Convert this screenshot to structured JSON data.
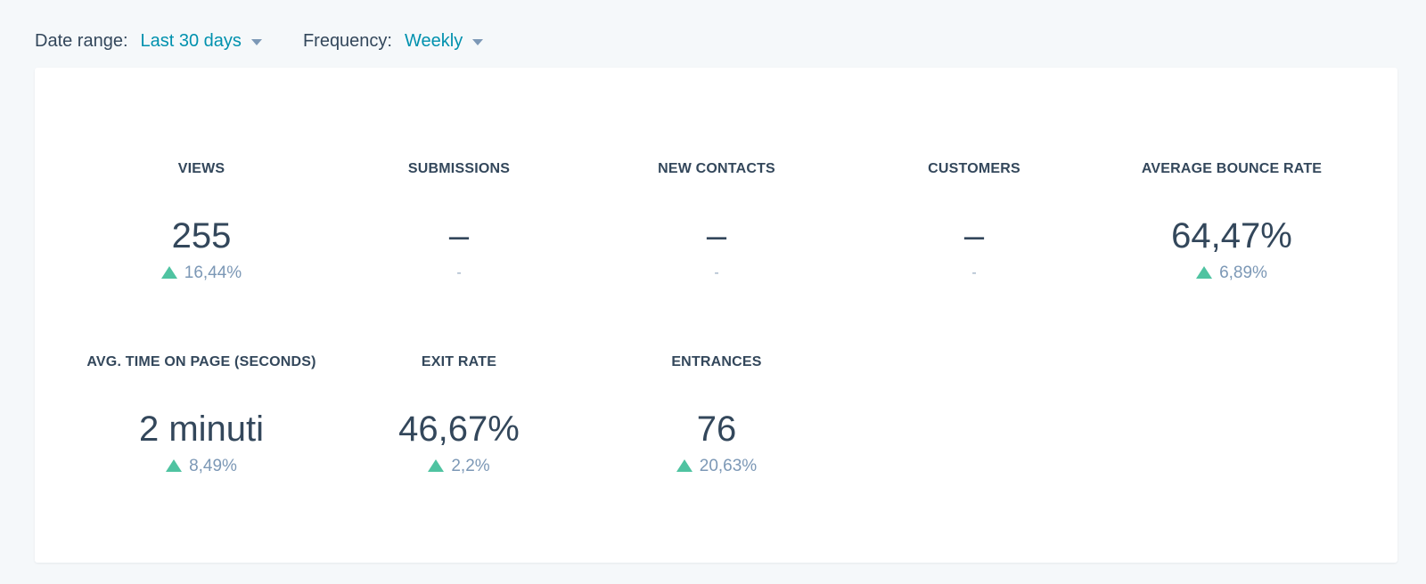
{
  "filters": {
    "date_range": {
      "label": "Date range:",
      "value": "Last 30 days"
    },
    "frequency": {
      "label": "Frequency:",
      "value": "Weekly"
    }
  },
  "colors": {
    "accent": "#0091ae",
    "positive": "#4fc3a1",
    "text": "#33475b",
    "muted": "#7c98b6",
    "background": "#f5f8fa"
  },
  "metrics": [
    {
      "label": "VIEWS",
      "value": "255",
      "change": "16,44%",
      "trend": "up"
    },
    {
      "label": "SUBMISSIONS",
      "value": "–",
      "change": "-",
      "trend": "none"
    },
    {
      "label": "NEW CONTACTS",
      "value": "–",
      "change": "-",
      "trend": "none"
    },
    {
      "label": "CUSTOMERS",
      "value": "–",
      "change": "-",
      "trend": "none"
    },
    {
      "label": "AVERAGE BOUNCE RATE",
      "value": "64,47%",
      "change": "6,89%",
      "trend": "up"
    },
    {
      "label": "AVG. TIME ON PAGE (SECONDS)",
      "value": "2 minuti",
      "change": "8,49%",
      "trend": "up"
    },
    {
      "label": "EXIT RATE",
      "value": "46,67%",
      "change": "2,2%",
      "trend": "up"
    },
    {
      "label": "ENTRANCES",
      "value": "76",
      "change": "20,63%",
      "trend": "up"
    }
  ]
}
